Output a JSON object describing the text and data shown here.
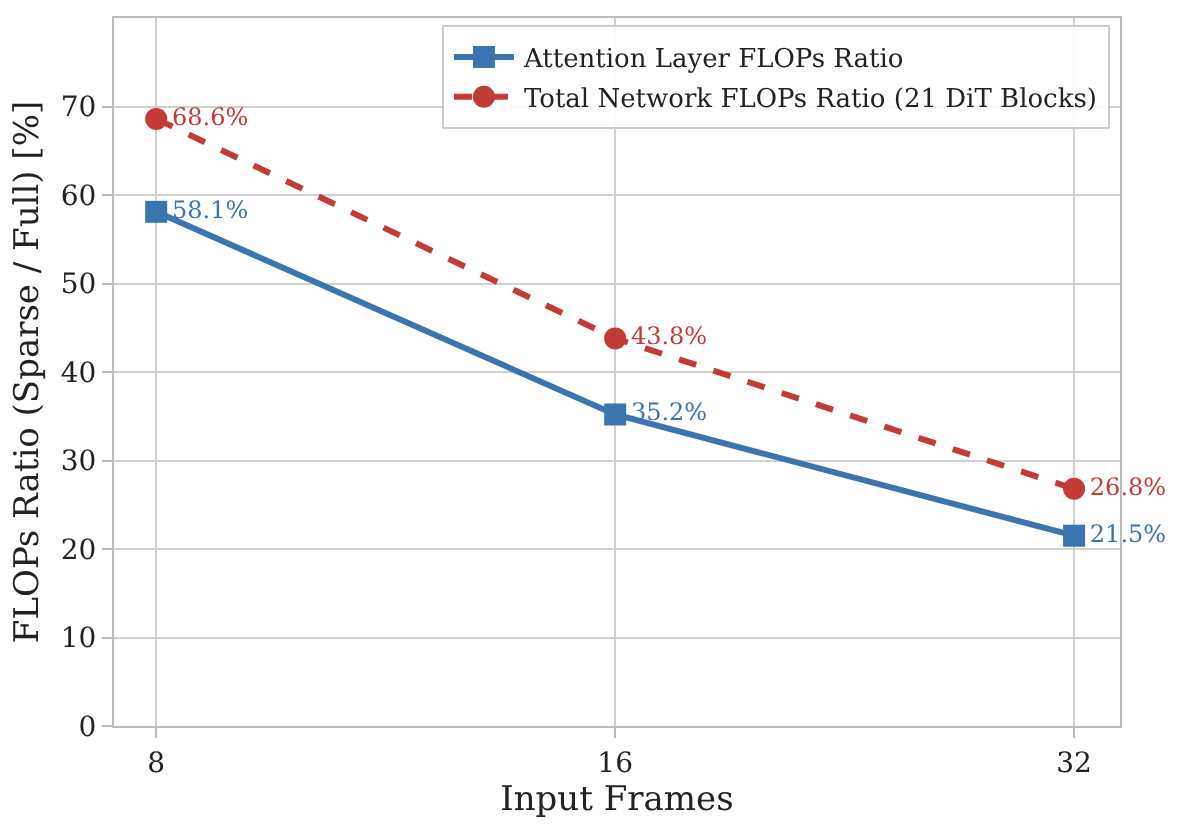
{
  "chart_data": {
    "type": "line",
    "xlabel": "Input Frames",
    "ylabel": "FLOPs Ratio (Sparse / Full) [%]",
    "categories": [
      "8",
      "16",
      "32"
    ],
    "series": [
      {
        "name": "Attention Layer FLOPs Ratio",
        "color": "#3b75af",
        "values": [
          58.1,
          35.2,
          21.5
        ],
        "value_labels": [
          "58.1%",
          "35.2%",
          "21.5%"
        ],
        "marker": "square",
        "line_style": "solid"
      },
      {
        "name": "Total Network FLOPs Ratio (21 DiT Blocks)",
        "color": "#c43a35",
        "values": [
          68.6,
          43.8,
          26.8
        ],
        "value_labels": [
          "68.6%",
          "43.8%",
          "26.8%"
        ],
        "marker": "circle",
        "line_style": "dashed"
      }
    ],
    "ylim": [
      0,
      80
    ],
    "yticks": [
      0,
      10,
      20,
      30,
      40,
      50,
      60,
      70
    ],
    "grid": true,
    "legend": "top right"
  }
}
